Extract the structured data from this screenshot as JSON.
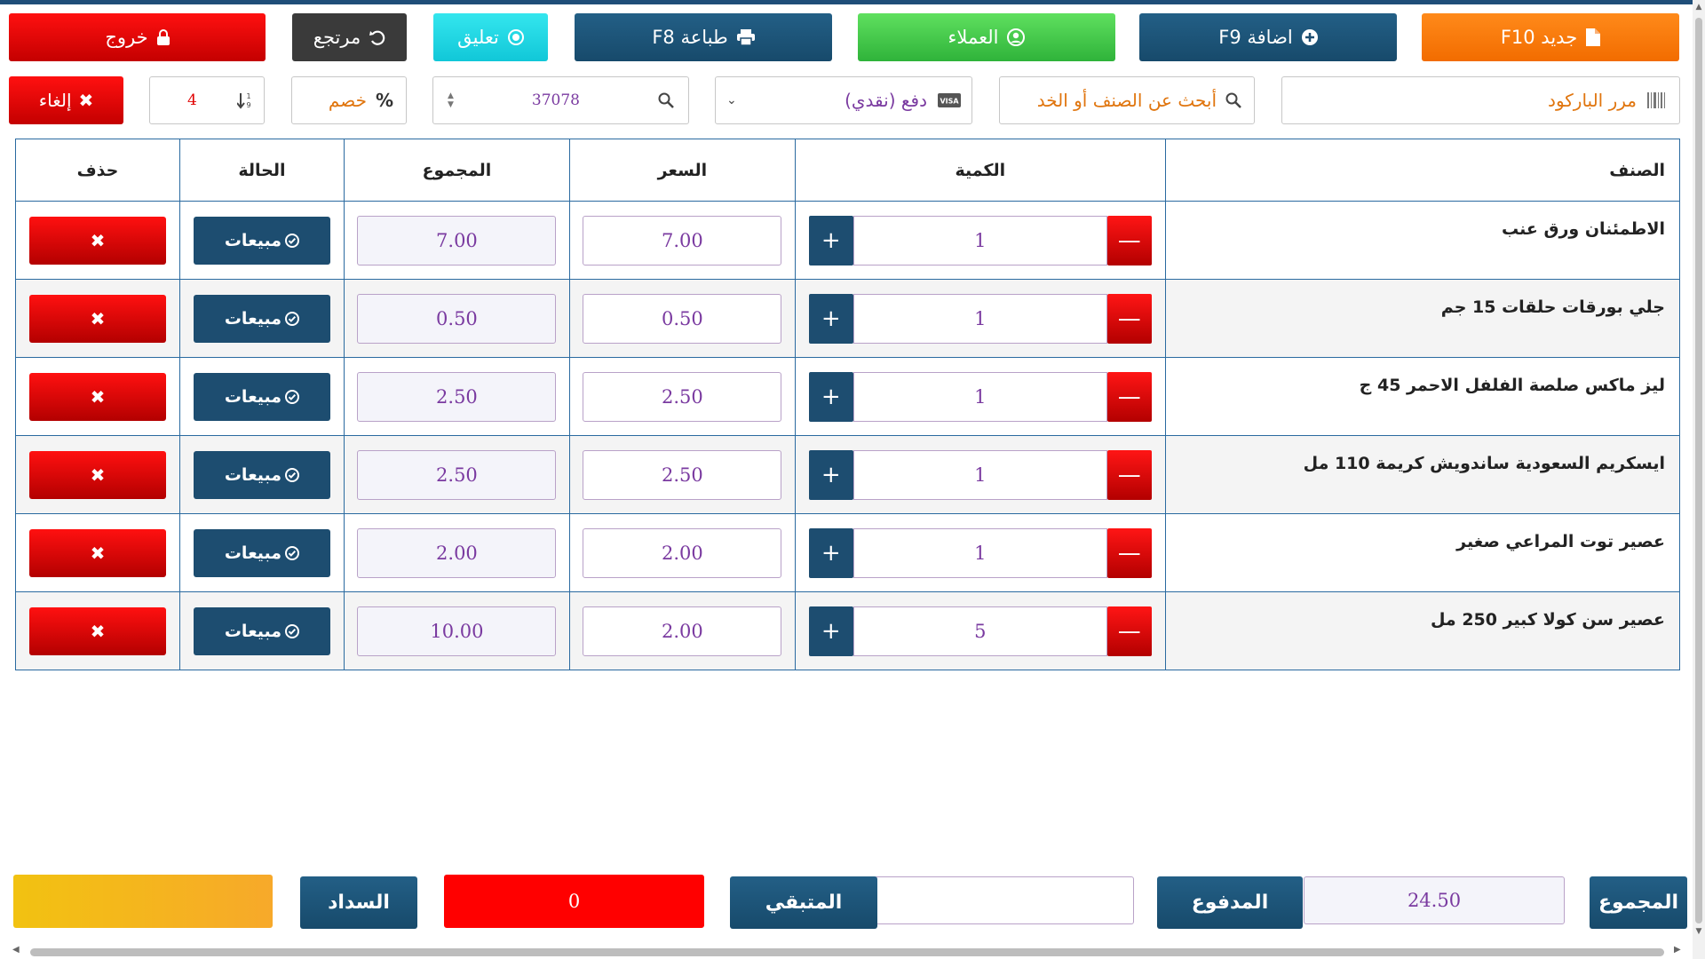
{
  "toolbar": {
    "new_label": "جديد F10",
    "add_label": "اضافة F9",
    "customers_label": "العملاء",
    "print_label": "طباعة F8",
    "hold_label": "تعليق",
    "return_label": "مرتجع",
    "exit_label": "خروج"
  },
  "controls": {
    "barcode_placeholder": "مرر الباركود",
    "search_placeholder": "أبحث عن الصنف أو الخد",
    "payment_method": "دفع (نقدي)",
    "invoice_number": "37078",
    "discount_label": "خصم",
    "discount_symbol": "%",
    "items_count": "4",
    "cancel_label": "إلغاء"
  },
  "table": {
    "headers": {
      "item": "الصنف",
      "quantity": "الكمية",
      "price": "السعر",
      "total": "المجموع",
      "status": "الحالة",
      "delete": "حذف"
    },
    "rows": [
      {
        "name": "الاطمئنان ورق عنب",
        "qty": "1",
        "price": "7.00",
        "total": "7.00",
        "status": "مبيعات"
      },
      {
        "name": "جلي بورقات حلقات 15 جم",
        "qty": "1",
        "price": "0.50",
        "total": "0.50",
        "status": "مبيعات"
      },
      {
        "name": "ليز ماكس صلصة الفلفل الاحمر 45 ج",
        "qty": "1",
        "price": "2.50",
        "total": "2.50",
        "status": "مبيعات"
      },
      {
        "name": "ايسكريم السعودية ساندويش كريمة 110 مل",
        "qty": "1",
        "price": "2.50",
        "total": "2.50",
        "status": "مبيعات"
      },
      {
        "name": "عصير توت المراعي صغير",
        "qty": "1",
        "price": "2.00",
        "total": "2.00",
        "status": "مبيعات"
      },
      {
        "name": "عصير سن كولا كبير 250 مل",
        "qty": "5",
        "price": "2.00",
        "total": "10.00",
        "status": "مبيعات"
      }
    ]
  },
  "footer": {
    "total_label": "المجموع",
    "total_value": "24.50",
    "paid_label": "المدفوع",
    "paid_value": "",
    "remaining_label": "المتبقي",
    "remaining_value": "0",
    "settle_label": "السداد"
  },
  "icons": {
    "new": "file-icon",
    "add": "plus-circle-icon",
    "customers": "user-circle-icon",
    "print": "printer-icon",
    "hold": "record-icon",
    "return": "undo-icon",
    "exit": "lock-icon",
    "barcode": "barcode-icon",
    "search": "search-icon",
    "payment": "visa-card-icon",
    "sort": "sort-numeric-icon",
    "cancel": "close-icon",
    "status": "check-circle-icon",
    "delete": "close-icon"
  },
  "colors": {
    "orange": "#f26c00",
    "navy": "#1d4d70",
    "green": "#2fb33a",
    "cyan": "#11c7d8",
    "red": "#e00000",
    "gold": "#f2c211"
  }
}
